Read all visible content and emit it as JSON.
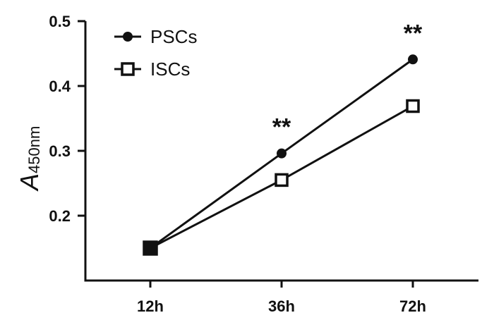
{
  "chart_data": {
    "type": "line",
    "categories": [
      "12h",
      "36h",
      "72h"
    ],
    "series": [
      {
        "name": "PSCs",
        "values": [
          0.15,
          0.296,
          0.441
        ],
        "marker": "filled-circle"
      },
      {
        "name": "ISCs",
        "values": [
          0.15,
          0.255,
          0.369
        ],
        "marker": "open-square"
      }
    ],
    "ylabel": {
      "main": "A",
      "sub": "450nm"
    },
    "ylim": [
      0.1,
      0.5
    ],
    "yticks": [
      "0.2",
      "0.3",
      "0.4",
      "0.5"
    ],
    "annotations": [
      {
        "category": "36h",
        "text": "**"
      },
      {
        "category": "72h",
        "text": "**"
      }
    ],
    "legend_position": "top-left",
    "grid": false,
    "line_color": "#111111"
  }
}
